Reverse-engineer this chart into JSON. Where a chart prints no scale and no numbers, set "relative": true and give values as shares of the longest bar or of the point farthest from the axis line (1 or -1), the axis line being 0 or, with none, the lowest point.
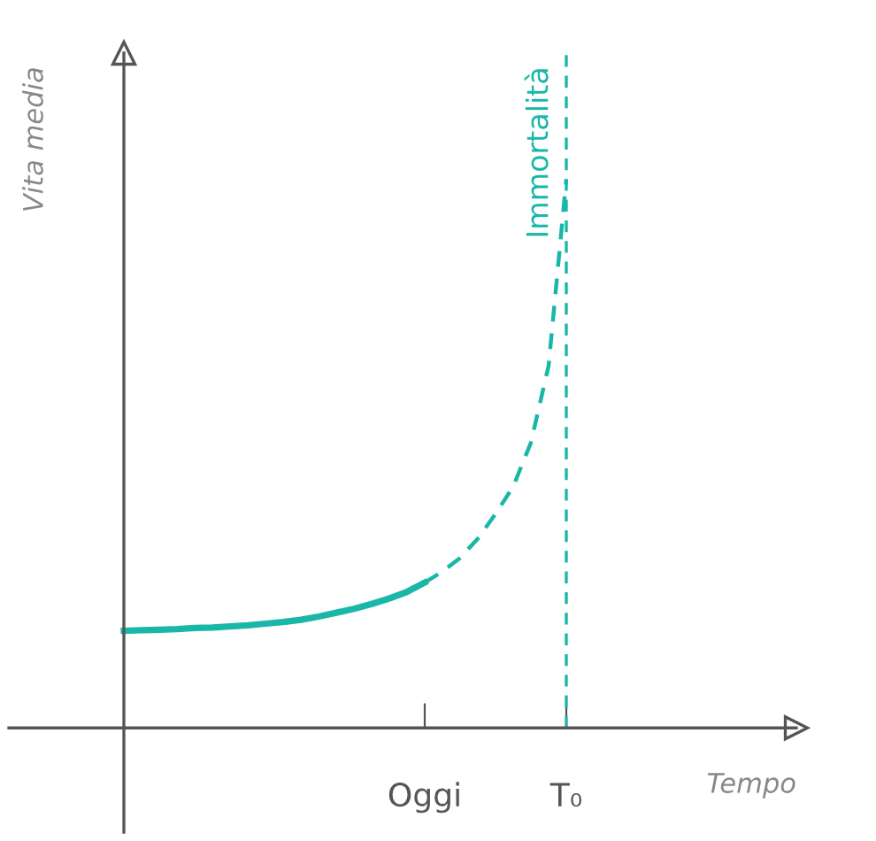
{
  "chart_data": {
    "type": "line",
    "relative": true,
    "xlabel": "Tempo",
    "ylabel": "Vita media",
    "categories": [
      null,
      null,
      null,
      null,
      null,
      null,
      null,
      null,
      null,
      null,
      null,
      null,
      null,
      null,
      null,
      null,
      null,
      "Oggi",
      null,
      null,
      null,
      null,
      null,
      null,
      null,
      "T₀"
    ],
    "tick_labels": "x",
    "grid": false,
    "marker": "none",
    "series": [
      {
        "color": "#19b7a8",
        "line_style": "solid",
        "values": [
          0.177,
          0.178,
          0.179,
          0.18,
          0.182,
          0.183,
          0.185,
          0.187,
          0.19,
          0.193,
          0.197,
          0.203,
          0.21,
          0.217,
          0.226,
          0.236,
          0.248,
          0.265,
          null,
          null,
          null,
          null,
          null,
          null,
          null,
          null
        ]
      },
      {
        "color": "#19b7a8",
        "line_style": "dashed",
        "values": [
          null,
          null,
          null,
          null,
          null,
          null,
          null,
          null,
          null,
          null,
          null,
          null,
          null,
          null,
          null,
          null,
          null,
          0.265,
          0.285,
          0.31,
          0.345,
          0.39,
          0.44,
          0.52,
          0.66,
          1.0
        ]
      }
    ],
    "ref_lines": [
      {
        "axis": "x",
        "value": "T₀",
        "label": "Immortalità",
        "color": "#19b7a8",
        "line_style": "dashed"
      }
    ]
  }
}
